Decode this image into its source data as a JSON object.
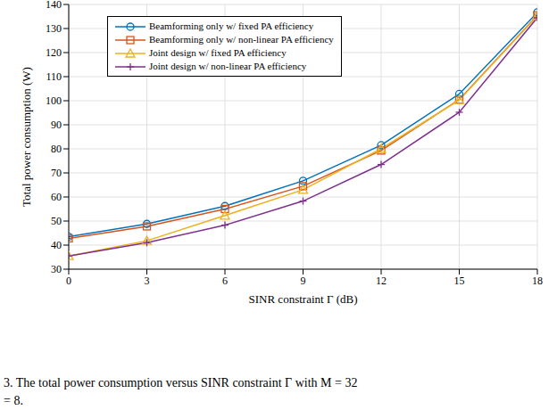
{
  "chart_data": {
    "type": "line",
    "xlabel": "SINR constraint Γ (dB)",
    "ylabel": "Total power consumption (W)",
    "caption": [
      "3. The total power consumption versus SINR constraint Γ with M = 32",
      "= 8."
    ],
    "x": [
      0,
      3,
      6,
      9,
      12,
      15,
      18
    ],
    "xlim": [
      0,
      18
    ],
    "xticks": [
      0,
      3,
      6,
      9,
      12,
      15,
      18
    ],
    "ylim": [
      30,
      140
    ],
    "yticks": [
      30,
      40,
      50,
      60,
      70,
      80,
      90,
      100,
      110,
      120,
      130,
      140
    ],
    "grid": true,
    "legend": "upper left",
    "series": [
      {
        "name": "Beamforming only w/ fixed PA efficiency",
        "color": "#0072BD",
        "marker": "circle",
        "values": [
          43.5,
          48.8,
          56.2,
          66.7,
          81.5,
          102.8,
          136.7
        ]
      },
      {
        "name": "Beamforming only w/ non-linear PA efficiency",
        "color": "#D95319",
        "marker": "square",
        "values": [
          42.8,
          47.8,
          55.0,
          64.5,
          79.3,
          100.5,
          135.5
        ]
      },
      {
        "name": "Joint design w/ fixed PA efficiency",
        "color": "#EDB120",
        "marker": "triangle",
        "values": [
          35.5,
          41.8,
          52.3,
          63.0,
          80.0,
          100.3,
          135.3
        ]
      },
      {
        "name": "Joint design w/ non-linear PA efficiency",
        "color": "#7E2F8E",
        "marker": "plus",
        "values": [
          35.5,
          41.0,
          48.3,
          58.3,
          73.5,
          95.2,
          134.5
        ]
      }
    ]
  }
}
